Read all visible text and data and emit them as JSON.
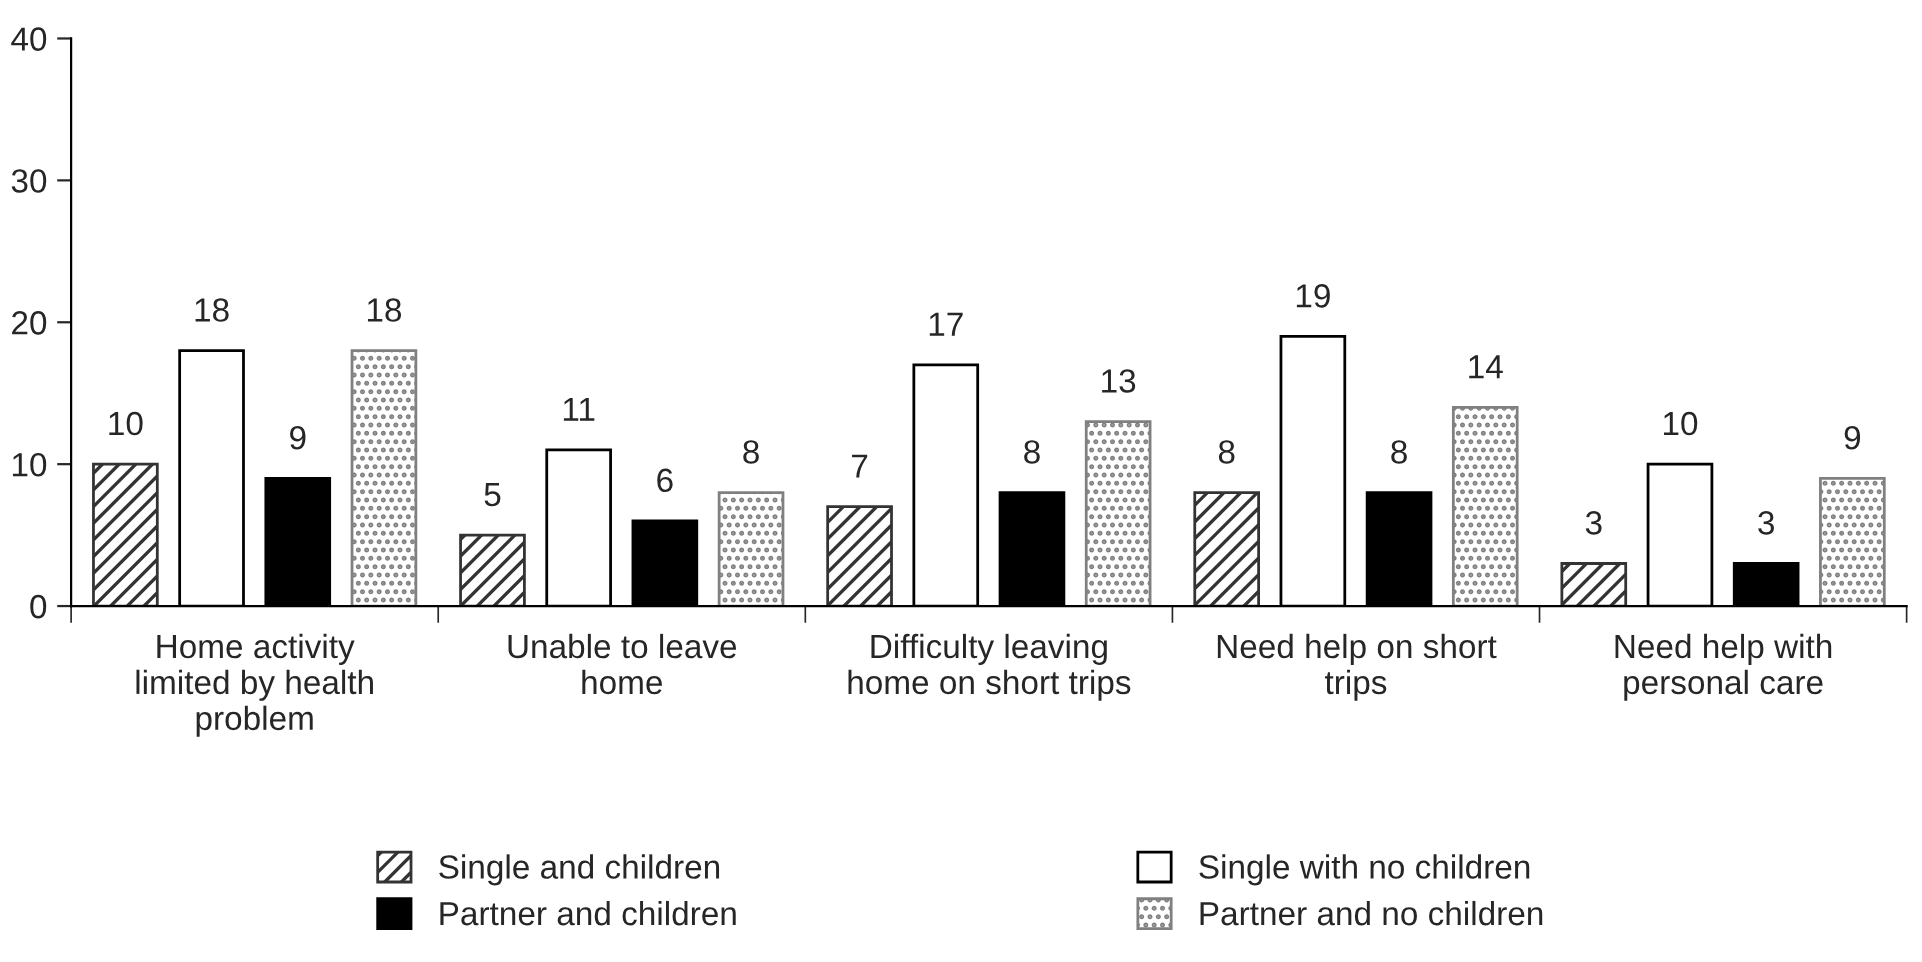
{
  "chart_data": {
    "type": "bar",
    "categories": [
      "Home activity\nlimited by health\nproblem",
      "Unable to leave\nhome",
      "Difficulty leaving\nhome on short trips",
      "Need help on short\ntrips",
      "Need help with\npersonal care"
    ],
    "series": [
      {
        "name": "Single and children",
        "color": "#333333",
        "values": [
          10,
          5,
          7,
          8,
          3
        ]
      },
      {
        "name": "Single with no children",
        "color": "#ffffff",
        "values": [
          18,
          11,
          17,
          19,
          10
        ]
      },
      {
        "name": "Partner and children",
        "color": "#000000",
        "values": [
          9,
          6,
          8,
          8,
          3
        ]
      },
      {
        "name": "Partner and no children",
        "color": "#808080",
        "values": [
          18,
          8,
          13,
          14,
          9
        ]
      }
    ],
    "ylim": [
      0,
      40
    ],
    "yticks": [
      0,
      10,
      20,
      30,
      40
    ],
    "data_labels": true,
    "grid": false,
    "legend": "bottom"
  }
}
